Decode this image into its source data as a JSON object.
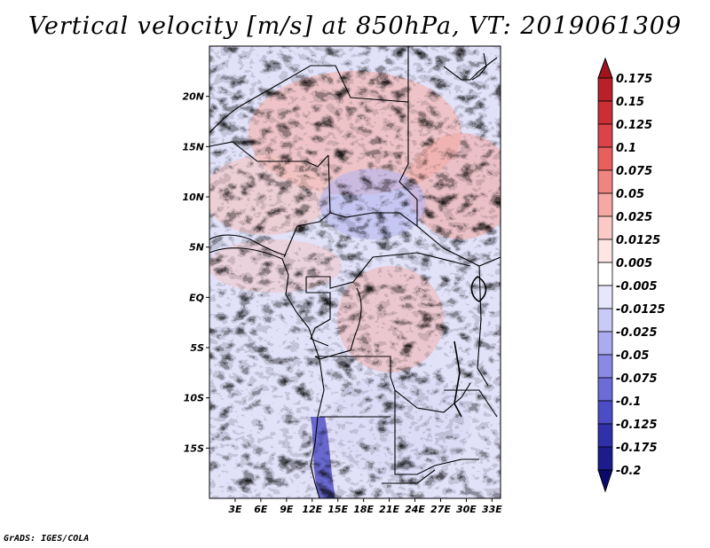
{
  "title": "Vertical velocity [m/s] at 850hPa, VT: 2019061309",
  "footer": "GrADS: IGES/COLA",
  "map": {
    "lat_labels": [
      "20N",
      "15N",
      "10N",
      "5N",
      "EQ",
      "5S",
      "10S",
      "15S"
    ],
    "lat_values": [
      20,
      15,
      10,
      5,
      0,
      -5,
      -10,
      -15
    ],
    "lon_labels": [
      "3E",
      "6E",
      "9E",
      "12E",
      "15E",
      "18E",
      "21E",
      "24E",
      "27E",
      "30E",
      "33E"
    ],
    "lon_values": [
      3,
      6,
      9,
      12,
      15,
      18,
      21,
      24,
      27,
      30,
      33
    ],
    "lon_range": [
      0,
      34
    ],
    "lat_range": [
      -20,
      25
    ]
  },
  "colorbar": {
    "labels": [
      "0.175",
      "0.15",
      "0.125",
      "0.1",
      "0.075",
      "0.05",
      "0.025",
      "0.0125",
      "0.005",
      "-0.005",
      "-0.0125",
      "-0.025",
      "-0.05",
      "-0.075",
      "-0.1",
      "-0.125",
      "-0.175",
      "-0.2"
    ],
    "colors": [
      "#a0141e",
      "#b8202a",
      "#cc2e36",
      "#dc4348",
      "#e8605e",
      "#f08480",
      "#f6a8a4",
      "#fbcac7",
      "#fde6e4",
      "#ffffff",
      "#e6e6fc",
      "#cacaf6",
      "#ababf0",
      "#8a8ae6",
      "#6c6cd8",
      "#4c4cc6",
      "#3030aa",
      "#1c1c8c",
      "#0a0a6e"
    ]
  }
}
